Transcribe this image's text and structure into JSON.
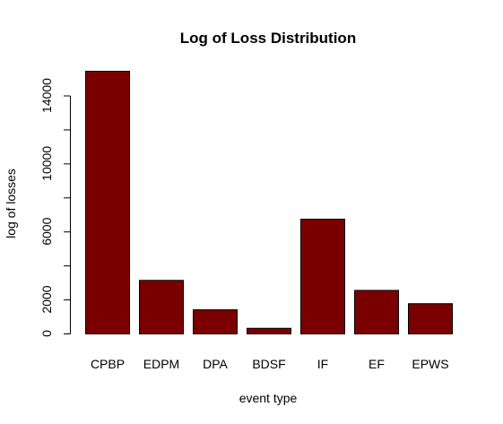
{
  "chart_data": {
    "type": "bar",
    "title": "Log of Loss Distribution",
    "xlabel": "event type",
    "ylabel": "log of losses",
    "categories": [
      "CPBP",
      "EDPM",
      "DPA",
      "BDSF",
      "IF",
      "EF",
      "EPWS"
    ],
    "values": [
      15450,
      3150,
      1420,
      330,
      6750,
      2560,
      1780
    ],
    "ylim": [
      0,
      15450
    ],
    "yticks": [
      0,
      2000,
      6000,
      10000,
      14000
    ],
    "ytick_marks": [
      0,
      2000,
      4000,
      6000,
      8000,
      10000,
      12000,
      14000
    ],
    "bar_color": "#7a0000",
    "grid": false,
    "legend": "none"
  }
}
